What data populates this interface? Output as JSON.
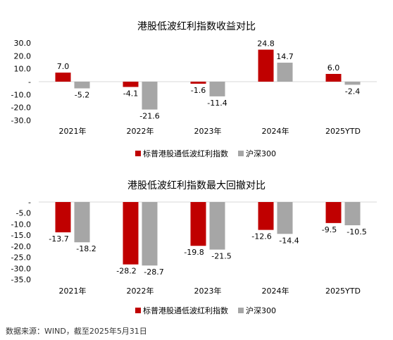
{
  "source_note": "数据来源：WIND，截至2025年5月31日",
  "colors": {
    "index": "#c00000",
    "csi300": "#a6a6a6",
    "axis": "#d9d9d9",
    "text": "#000000"
  },
  "chart_data": [
    {
      "type": "bar",
      "title": "港股低波红利指数收益对比",
      "categories": [
        "2021年",
        "2022年",
        "2023年",
        "2024年",
        "2025YTD"
      ],
      "series": [
        {
          "name": "标普港股通低波红利指数",
          "values": [
            7.0,
            -4.1,
            -1.6,
            24.8,
            6.0
          ]
        },
        {
          "name": "沪深300",
          "values": [
            -5.2,
            -21.6,
            -11.4,
            14.7,
            -2.4
          ]
        }
      ],
      "ylim": [
        -30,
        30
      ],
      "yticks": [
        30,
        20,
        10,
        0,
        -10,
        -20,
        -30
      ],
      "ytick_labels": [
        "30.0",
        "20.0",
        "10.0",
        "-",
        "-10.0",
        "-20.0",
        "-30.0"
      ],
      "legend": "bottom",
      "xlabel": "",
      "ylabel": ""
    },
    {
      "type": "bar",
      "title": "港股低波红利指数最大回撤对比",
      "categories": [
        "2021年",
        "2022年",
        "2023年",
        "2024年",
        "2025YTD"
      ],
      "series": [
        {
          "name": "标普港股通低波红利指数",
          "values": [
            -13.7,
            -28.2,
            -19.8,
            -12.6,
            -9.5
          ]
        },
        {
          "name": "沪深300",
          "values": [
            -18.2,
            -28.7,
            -21.5,
            -14.4,
            -10.5
          ]
        }
      ],
      "ylim": [
        -35,
        0
      ],
      "yticks": [
        0,
        -5,
        -10,
        -15,
        -20,
        -25,
        -30,
        -35
      ],
      "ytick_labels": [
        "-",
        "-5.0",
        "-10.0",
        "-15.0",
        "-20.0",
        "-25.0",
        "-30.0",
        "-35.0"
      ],
      "legend": "bottom",
      "xlabel": "",
      "ylabel": ""
    }
  ]
}
